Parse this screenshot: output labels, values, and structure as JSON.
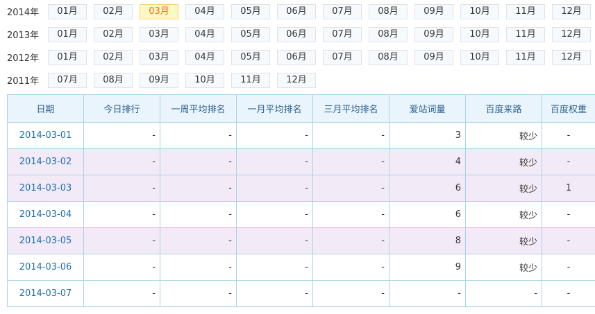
{
  "years": [
    {
      "label": "2014年",
      "months": [
        "01月",
        "02月",
        "03月",
        "04月",
        "05月",
        "06月",
        "07月",
        "08月",
        "09月",
        "10月",
        "11月",
        "12月"
      ],
      "active": "03月"
    },
    {
      "label": "2013年",
      "months": [
        "01月",
        "02月",
        "03月",
        "04月",
        "05月",
        "06月",
        "07月",
        "08月",
        "09月",
        "10月",
        "11月",
        "12月"
      ]
    },
    {
      "label": "2012年",
      "months": [
        "01月",
        "02月",
        "03月",
        "04月",
        "05月",
        "06月",
        "07月",
        "08月",
        "09月",
        "10月",
        "11月",
        "12月"
      ]
    },
    {
      "label": "2011年",
      "months": [
        "07月",
        "08月",
        "09月",
        "10月",
        "11月",
        "12月"
      ]
    }
  ],
  "table": {
    "headers": [
      "日期",
      "今日排行",
      "一周平均排名",
      "一月平均排名",
      "三月平均排名",
      "爱站词量",
      "百度来路",
      "百度权重"
    ],
    "rows": [
      {
        "cells": [
          "2014-03-01",
          "-",
          "-",
          "-",
          "-",
          "3",
          "较少",
          "-"
        ],
        "highlight": false
      },
      {
        "cells": [
          "2014-03-02",
          "-",
          "-",
          "-",
          "-",
          "4",
          "较少",
          "-"
        ],
        "highlight": true
      },
      {
        "cells": [
          "2014-03-03",
          "-",
          "-",
          "-",
          "-",
          "6",
          "较少",
          "1"
        ],
        "highlight": true
      },
      {
        "cells": [
          "2014-03-04",
          "-",
          "-",
          "-",
          "-",
          "6",
          "较少",
          "-"
        ],
        "highlight": false
      },
      {
        "cells": [
          "2014-03-05",
          "-",
          "-",
          "-",
          "-",
          "8",
          "较少",
          "-"
        ],
        "highlight": true
      },
      {
        "cells": [
          "2014-03-06",
          "-",
          "-",
          "-",
          "-",
          "9",
          "较少",
          "-"
        ],
        "highlight": false
      },
      {
        "cells": [
          "2014-03-07",
          "-",
          "-",
          "-",
          "-",
          "-",
          "-",
          "-"
        ],
        "highlight": false
      }
    ]
  },
  "colors": {
    "active_month_text": "#f56a1a",
    "active_month_bg": "#fff7c4",
    "row_highlight": "#f3eaf7",
    "border": "#a6d5e4",
    "link": "#1f6fb4"
  }
}
